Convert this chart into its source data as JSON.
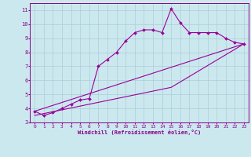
{
  "xlabel": "Windchill (Refroidissement éolien,°C)",
  "background_color": "#cce8ef",
  "grid_color": "#aacdd8",
  "line_color": "#990099",
  "xlim": [
    -0.5,
    23.5
  ],
  "ylim": [
    3,
    11.5
  ],
  "xticks": [
    0,
    1,
    2,
    3,
    4,
    5,
    6,
    7,
    8,
    9,
    10,
    11,
    12,
    13,
    14,
    15,
    16,
    17,
    18,
    19,
    20,
    21,
    22,
    23
  ],
  "yticks": [
    3,
    4,
    5,
    6,
    7,
    8,
    9,
    10,
    11
  ],
  "main_x": [
    0,
    1,
    2,
    3,
    4,
    5,
    6,
    7,
    8,
    9,
    10,
    11,
    12,
    13,
    14,
    15,
    16,
    17,
    18,
    19,
    20,
    21,
    22,
    23
  ],
  "main_y": [
    3.8,
    3.5,
    3.7,
    4.0,
    4.3,
    4.6,
    4.7,
    7.0,
    7.5,
    8.0,
    8.8,
    9.4,
    9.6,
    9.6,
    9.4,
    11.1,
    10.1,
    9.4,
    9.4,
    9.4,
    9.4,
    9.0,
    8.7,
    8.6
  ],
  "line2_x": [
    0,
    23
  ],
  "line2_y": [
    3.8,
    8.6
  ],
  "line3_x": [
    0,
    23
  ],
  "line3_y": [
    3.8,
    8.6
  ],
  "line4_x": [
    0,
    15,
    23
  ],
  "line4_y": [
    3.5,
    5.5,
    8.6
  ]
}
